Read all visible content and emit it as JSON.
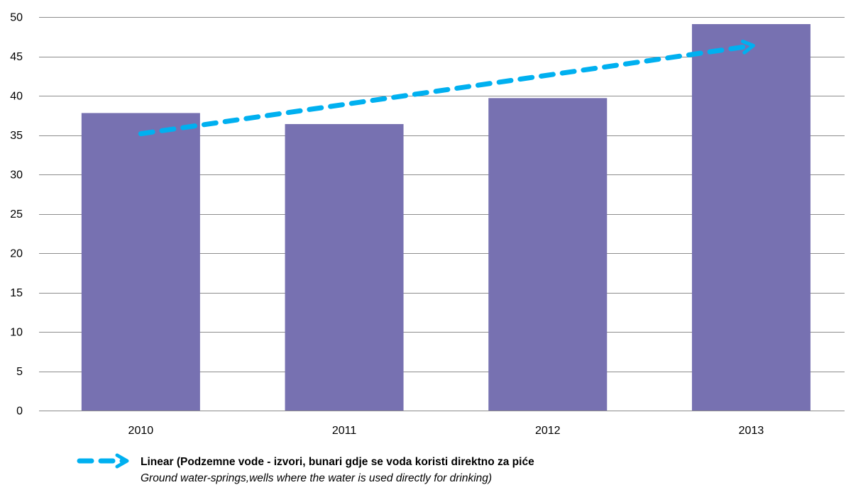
{
  "chart_data": {
    "type": "bar",
    "categories": [
      "2010",
      "2011",
      "2012",
      "2013"
    ],
    "series": [
      {
        "values": [
          37.8,
          36.4,
          39.7,
          49.1
        ]
      }
    ],
    "ylim": [
      0,
      50
    ],
    "yticks": [
      0,
      5,
      10,
      15,
      20,
      25,
      30,
      35,
      40,
      45,
      50
    ],
    "grid": true,
    "trendline": {
      "type": "linear",
      "arrow": true
    },
    "legend": {
      "position": "bottom-left",
      "entries": [
        {
          "marker": "dashed-arrow",
          "label": "Linear (Podzemne vode - izvori, bunari gdje se voda koristi direktno za piće",
          "label_secondary": "Ground water-springs,wells where the water is used directly for drinking)"
        }
      ]
    },
    "colors": {
      "bar": "#7771B1",
      "trendline": "#00B0F0",
      "grid": "#8C8C8C",
      "text": "#000000"
    }
  }
}
